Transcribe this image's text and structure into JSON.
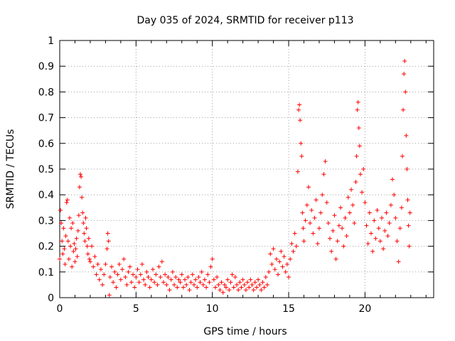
{
  "chart_data": {
    "type": "scatter",
    "title": "Day 035 of 2024, SRMTID for receiver p113",
    "xlabel": "GPS time / hours",
    "ylabel": "SRMTID / TECUs",
    "xlim": [
      0,
      24.5
    ],
    "ylim": [
      0,
      1
    ],
    "xticks": [
      0,
      5,
      10,
      15,
      20
    ],
    "xtick_labels": [
      "0",
      "5",
      "10",
      "15",
      "20"
    ],
    "yticks": [
      0,
      0.1,
      0.2,
      0.3,
      0.4,
      0.5,
      0.6,
      0.7,
      0.8,
      0.9,
      1.0
    ],
    "ytick_labels": [
      "0",
      "0.1",
      "0.2",
      "0.3",
      "0.4",
      "0.5",
      "0.6",
      "0.7",
      "0.8",
      "0.9",
      "1"
    ],
    "grid": true,
    "marker": "+",
    "color": "#ff0000",
    "series": [
      {
        "name": "SRMTID",
        "points": [
          [
            0.0,
            0.15
          ],
          [
            0.05,
            0.34
          ],
          [
            0.1,
            0.29
          ],
          [
            0.15,
            0.22
          ],
          [
            0.2,
            0.17
          ],
          [
            0.25,
            0.27
          ],
          [
            0.3,
            0.19
          ],
          [
            0.35,
            0.13
          ],
          [
            0.4,
            0.24
          ],
          [
            0.45,
            0.37
          ],
          [
            0.5,
            0.38
          ],
          [
            0.55,
            0.22
          ],
          [
            0.6,
            0.15
          ],
          [
            0.65,
            0.31
          ],
          [
            0.7,
            0.2
          ],
          [
            0.75,
            0.27
          ],
          [
            0.8,
            0.12
          ],
          [
            0.85,
            0.29
          ],
          [
            0.9,
            0.18
          ],
          [
            0.95,
            0.21
          ],
          [
            1.0,
            0.14
          ],
          [
            1.05,
            0.19
          ],
          [
            1.1,
            0.23
          ],
          [
            1.15,
            0.16
          ],
          [
            1.2,
            0.26
          ],
          [
            1.25,
            0.32
          ],
          [
            1.3,
            0.43
          ],
          [
            1.35,
            0.48
          ],
          [
            1.4,
            0.47
          ],
          [
            1.45,
            0.39
          ],
          [
            1.5,
            0.33
          ],
          [
            1.55,
            0.29
          ],
          [
            1.6,
            0.25
          ],
          [
            1.65,
            0.22
          ],
          [
            1.7,
            0.31
          ],
          [
            1.75,
            0.27
          ],
          [
            1.8,
            0.2
          ],
          [
            1.85,
            0.17
          ],
          [
            1.9,
            0.23
          ],
          [
            1.95,
            0.15
          ],
          [
            2.0,
            0.14
          ],
          [
            2.1,
            0.2
          ],
          [
            2.2,
            0.12
          ],
          [
            2.3,
            0.16
          ],
          [
            2.4,
            0.09
          ],
          [
            2.5,
            0.13
          ],
          [
            2.6,
            0.07
          ],
          [
            2.7,
            0.11
          ],
          [
            2.8,
            0.05
          ],
          [
            2.9,
            0.09
          ],
          [
            3.0,
            0.13
          ],
          [
            3.1,
            0.19
          ],
          [
            3.15,
            0.25
          ],
          [
            3.2,
            0.22
          ],
          [
            3.25,
            0.01
          ],
          [
            3.3,
            0.08
          ],
          [
            3.4,
            0.12
          ],
          [
            3.5,
            0.06
          ],
          [
            3.6,
            0.1
          ],
          [
            3.7,
            0.04
          ],
          [
            3.8,
            0.09
          ],
          [
            3.9,
            0.13
          ],
          [
            4.0,
            0.07
          ],
          [
            4.1,
            0.11
          ],
          [
            4.2,
            0.15
          ],
          [
            4.3,
            0.08
          ],
          [
            4.4,
            0.05
          ],
          [
            4.5,
            0.1
          ],
          [
            4.6,
            0.12
          ],
          [
            4.7,
            0.06
          ],
          [
            4.8,
            0.09
          ],
          [
            4.9,
            0.04
          ],
          [
            5.0,
            0.08
          ],
          [
            5.1,
            0.11
          ],
          [
            5.2,
            0.06
          ],
          [
            5.3,
            0.09
          ],
          [
            5.4,
            0.13
          ],
          [
            5.5,
            0.07
          ],
          [
            5.6,
            0.05
          ],
          [
            5.7,
            0.1
          ],
          [
            5.8,
            0.08
          ],
          [
            5.9,
            0.04
          ],
          [
            6.0,
            0.07
          ],
          [
            6.1,
            0.11
          ],
          [
            6.2,
            0.06
          ],
          [
            6.3,
            0.09
          ],
          [
            6.4,
            0.05
          ],
          [
            6.5,
            0.12
          ],
          [
            6.6,
            0.08
          ],
          [
            6.7,
            0.14
          ],
          [
            6.8,
            0.06
          ],
          [
            6.9,
            0.09
          ],
          [
            7.0,
            0.05
          ],
          [
            7.1,
            0.08
          ],
          [
            7.2,
            0.03
          ],
          [
            7.3,
            0.07
          ],
          [
            7.4,
            0.1
          ],
          [
            7.5,
            0.05
          ],
          [
            7.6,
            0.08
          ],
          [
            7.7,
            0.04
          ],
          [
            7.8,
            0.07
          ],
          [
            7.9,
            0.06
          ],
          [
            8.0,
            0.09
          ],
          [
            8.1,
            0.04
          ],
          [
            8.2,
            0.07
          ],
          [
            8.3,
            0.05
          ],
          [
            8.4,
            0.08
          ],
          [
            8.5,
            0.03
          ],
          [
            8.6,
            0.06
          ],
          [
            8.7,
            0.09
          ],
          [
            8.8,
            0.05
          ],
          [
            8.9,
            0.07
          ],
          [
            9.0,
            0.04
          ],
          [
            9.1,
            0.08
          ],
          [
            9.2,
            0.06
          ],
          [
            9.3,
            0.1
          ],
          [
            9.4,
            0.05
          ],
          [
            9.5,
            0.07
          ],
          [
            9.6,
            0.04
          ],
          [
            9.7,
            0.09
          ],
          [
            9.8,
            0.06
          ],
          [
            9.9,
            0.12
          ],
          [
            10.0,
            0.15
          ],
          [
            10.1,
            0.07
          ],
          [
            10.2,
            0.04
          ],
          [
            10.3,
            0.08
          ],
          [
            10.4,
            0.05
          ],
          [
            10.5,
            0.03
          ],
          [
            10.6,
            0.06
          ],
          [
            10.7,
            0.02
          ],
          [
            10.8,
            0.05
          ],
          [
            10.9,
            0.04
          ],
          [
            11.0,
            0.07
          ],
          [
            11.1,
            0.03
          ],
          [
            11.2,
            0.06
          ],
          [
            11.3,
            0.09
          ],
          [
            11.4,
            0.04
          ],
          [
            11.5,
            0.08
          ],
          [
            11.6,
            0.05
          ],
          [
            11.7,
            0.03
          ],
          [
            11.8,
            0.06
          ],
          [
            11.9,
            0.04
          ],
          [
            12.0,
            0.07
          ],
          [
            12.1,
            0.05
          ],
          [
            12.2,
            0.03
          ],
          [
            12.3,
            0.06
          ],
          [
            12.4,
            0.04
          ],
          [
            12.5,
            0.07
          ],
          [
            12.6,
            0.05
          ],
          [
            12.7,
            0.03
          ],
          [
            12.8,
            0.06
          ],
          [
            12.9,
            0.04
          ],
          [
            13.0,
            0.07
          ],
          [
            13.1,
            0.05
          ],
          [
            13.2,
            0.03
          ],
          [
            13.3,
            0.06
          ],
          [
            13.4,
            0.04
          ],
          [
            13.5,
            0.08
          ],
          [
            13.6,
            0.05
          ],
          [
            13.7,
            0.1
          ],
          [
            13.8,
            0.17
          ],
          [
            13.9,
            0.13
          ],
          [
            14.0,
            0.19
          ],
          [
            14.1,
            0.11
          ],
          [
            14.2,
            0.15
          ],
          [
            14.3,
            0.09
          ],
          [
            14.4,
            0.14
          ],
          [
            14.5,
            0.18
          ],
          [
            14.6,
            0.12
          ],
          [
            14.7,
            0.16
          ],
          [
            14.8,
            0.1
          ],
          [
            14.9,
            0.13
          ],
          [
            15.0,
            0.08
          ],
          [
            15.1,
            0.15
          ],
          [
            15.2,
            0.21
          ],
          [
            15.3,
            0.18
          ],
          [
            15.4,
            0.25
          ],
          [
            15.5,
            0.2
          ],
          [
            15.6,
            0.49
          ],
          [
            15.65,
            0.73
          ],
          [
            15.7,
            0.75
          ],
          [
            15.75,
            0.69
          ],
          [
            15.8,
            0.6
          ],
          [
            15.85,
            0.55
          ],
          [
            15.9,
            0.33
          ],
          [
            15.95,
            0.27
          ],
          [
            16.0,
            0.22
          ],
          [
            16.1,
            0.3
          ],
          [
            16.2,
            0.36
          ],
          [
            16.3,
            0.43
          ],
          [
            16.4,
            0.29
          ],
          [
            16.5,
            0.34
          ],
          [
            16.6,
            0.25
          ],
          [
            16.7,
            0.31
          ],
          [
            16.8,
            0.38
          ],
          [
            16.9,
            0.21
          ],
          [
            17.0,
            0.27
          ],
          [
            17.1,
            0.33
          ],
          [
            17.2,
            0.4
          ],
          [
            17.3,
            0.48
          ],
          [
            17.4,
            0.53
          ],
          [
            17.5,
            0.37
          ],
          [
            17.6,
            0.29
          ],
          [
            17.7,
            0.23
          ],
          [
            17.8,
            0.18
          ],
          [
            17.9,
            0.26
          ],
          [
            18.0,
            0.32
          ],
          [
            18.1,
            0.15
          ],
          [
            18.2,
            0.22
          ],
          [
            18.3,
            0.28
          ],
          [
            18.4,
            0.35
          ],
          [
            18.5,
            0.27
          ],
          [
            18.6,
            0.2
          ],
          [
            18.7,
            0.31
          ],
          [
            18.8,
            0.24
          ],
          [
            18.9,
            0.39
          ],
          [
            19.0,
            0.33
          ],
          [
            19.1,
            0.42
          ],
          [
            19.2,
            0.36
          ],
          [
            19.3,
            0.29
          ],
          [
            19.4,
            0.45
          ],
          [
            19.45,
            0.55
          ],
          [
            19.5,
            0.73
          ],
          [
            19.55,
            0.76
          ],
          [
            19.6,
            0.66
          ],
          [
            19.65,
            0.59
          ],
          [
            19.7,
            0.48
          ],
          [
            19.8,
            0.41
          ],
          [
            19.9,
            0.5
          ],
          [
            20.0,
            0.37
          ],
          [
            20.1,
            0.28
          ],
          [
            20.2,
            0.21
          ],
          [
            20.3,
            0.33
          ],
          [
            20.4,
            0.25
          ],
          [
            20.5,
            0.18
          ],
          [
            20.6,
            0.3
          ],
          [
            20.7,
            0.23
          ],
          [
            20.8,
            0.34
          ],
          [
            20.9,
            0.27
          ],
          [
            21.0,
            0.22
          ],
          [
            21.1,
            0.31
          ],
          [
            21.2,
            0.19
          ],
          [
            21.3,
            0.26
          ],
          [
            21.4,
            0.33
          ],
          [
            21.5,
            0.24
          ],
          [
            21.6,
            0.29
          ],
          [
            21.7,
            0.36
          ],
          [
            21.8,
            0.46
          ],
          [
            21.9,
            0.4
          ],
          [
            22.0,
            0.31
          ],
          [
            22.1,
            0.22
          ],
          [
            22.2,
            0.14
          ],
          [
            22.3,
            0.27
          ],
          [
            22.4,
            0.35
          ],
          [
            22.45,
            0.55
          ],
          [
            22.5,
            0.73
          ],
          [
            22.55,
            0.87
          ],
          [
            22.6,
            0.92
          ],
          [
            22.65,
            0.8
          ],
          [
            22.7,
            0.63
          ],
          [
            22.75,
            0.5
          ],
          [
            22.8,
            0.38
          ],
          [
            22.85,
            0.28
          ],
          [
            22.9,
            0.2
          ],
          [
            22.95,
            0.33
          ]
        ]
      }
    ]
  }
}
